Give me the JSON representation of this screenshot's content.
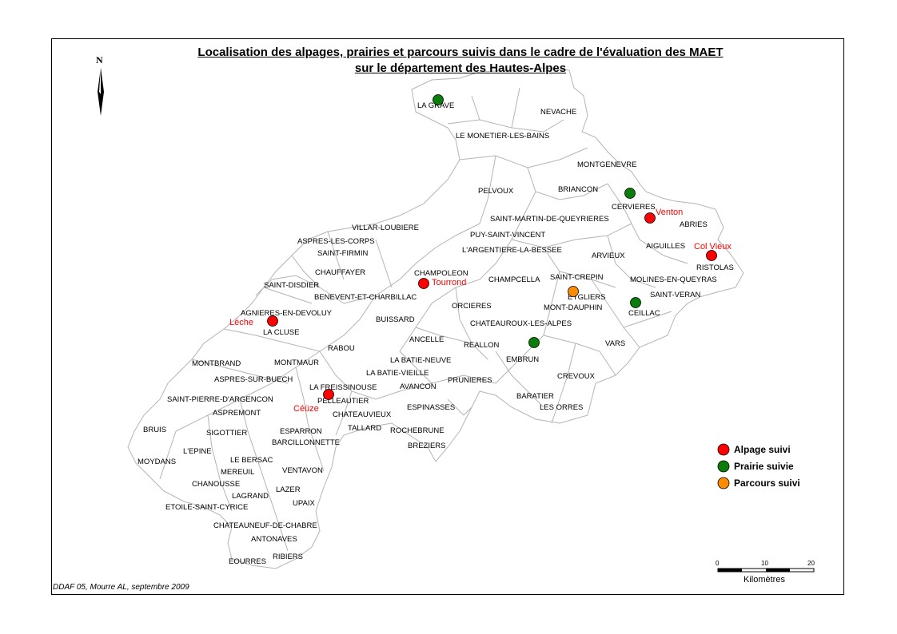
{
  "title": {
    "line1": "Localisation des alpages, prairies et parcours suivis dans le cadre de l'évaluation des MAET",
    "line2": "sur le département des Hautes-Alpes"
  },
  "north_label": "N",
  "credit": "DDAF 05, Mourre AL, septembre 2009",
  "colors": {
    "alpage": "#ff0000",
    "prairie": "#0a7d0a",
    "parcours": "#ff8c00",
    "border": "#b4b4b4"
  },
  "legend": [
    {
      "type": "alpage",
      "label": "Alpage suivi"
    },
    {
      "type": "prairie",
      "label": "Prairie suivie"
    },
    {
      "type": "parcours",
      "label": "Parcours suivi"
    }
  ],
  "scale": {
    "ticks": [
      "0",
      "10",
      "20"
    ],
    "unit": "Kilomètres"
  },
  "communes": [
    "LA GRAVE",
    "NEVACHE",
    "LE MONETIER-LES-BAINS",
    "MONTGENEVRE",
    "PELVOUX",
    "BRIANCON",
    "CERVIERES",
    "SAINT-MARTIN-DE-QUEYRIERES",
    "ABRIES",
    "VILLAR-LOUBIERE",
    "PUY-SAINT-VINCENT",
    "ASPRES-LES-CORPS",
    "AIGUILLES",
    "L'ARGENTIERE-LA-BESSEE",
    "ARVIEUX",
    "SAINT-FIRMIN",
    "RISTOLAS",
    "CHAMPOLEON",
    "CHAUFFAYER",
    "SAINT-CREPIN",
    "CHAMPCELLA",
    "MOLINES-EN-QUEYRAS",
    "SAINT-DISDIER",
    "SAINT-VERAN",
    "BENEVENT-ET-CHARBILLAC",
    "EYGLIERS",
    "ORCIERES",
    "MONT-DAUPHIN",
    "AGNIERES-EN-DEVOLUY",
    "CEILLAC",
    "BUISSARD",
    "CHATEAUROUX-LES-ALPES",
    "LA CLUSE",
    "ANCELLE",
    "RABOU",
    "REALLON",
    "VARS",
    "LA BATIE-NEUVE",
    "EMBRUN",
    "MONTBRAND",
    "MONTMAUR",
    "LA BATIE-VIEILLE",
    "CREVOUX",
    "ASPRES-SUR-BUECH",
    "PRUNIERES",
    "LA FREISSINOUSE",
    "AVANCON",
    "SAINT-PIERRE-D'ARGENCON",
    "PELLEAUTIER",
    "BARATIER",
    "ESPINASSES",
    "LES ORRES",
    "ASPREMONT",
    "CHATEAUVIEUX",
    "TALLARD",
    "BRUIS",
    "SIGOTTIER",
    "ESPARRON",
    "ROCHEBRUNE",
    "BARCILLONNETTE",
    "BREZIERS",
    "L'EPINE",
    "LE BERSAC",
    "MOYDANS",
    "VENTAVON",
    "MEREUIL",
    "CHANOUSSE",
    "LAZER",
    "LAGRAND",
    "UPAIX",
    "ETOILE-SAINT-CYRICE",
    "CHATEAUNEUF-DE-CHABRE",
    "ANTONAVES",
    "RIBIERS",
    "EOURRES"
  ],
  "sites": [
    {
      "type": "prairie",
      "label": ""
    },
    {
      "type": "prairie",
      "label": ""
    },
    {
      "type": "alpage",
      "label": "Venton"
    },
    {
      "type": "alpage",
      "label": "Col Vieux"
    },
    {
      "type": "alpage",
      "label": "Tourrond"
    },
    {
      "type": "parcours",
      "label": ""
    },
    {
      "type": "prairie",
      "label": ""
    },
    {
      "type": "alpage",
      "label": "Lèche"
    },
    {
      "type": "prairie",
      "label": ""
    },
    {
      "type": "alpage",
      "label": "Céüze"
    }
  ]
}
